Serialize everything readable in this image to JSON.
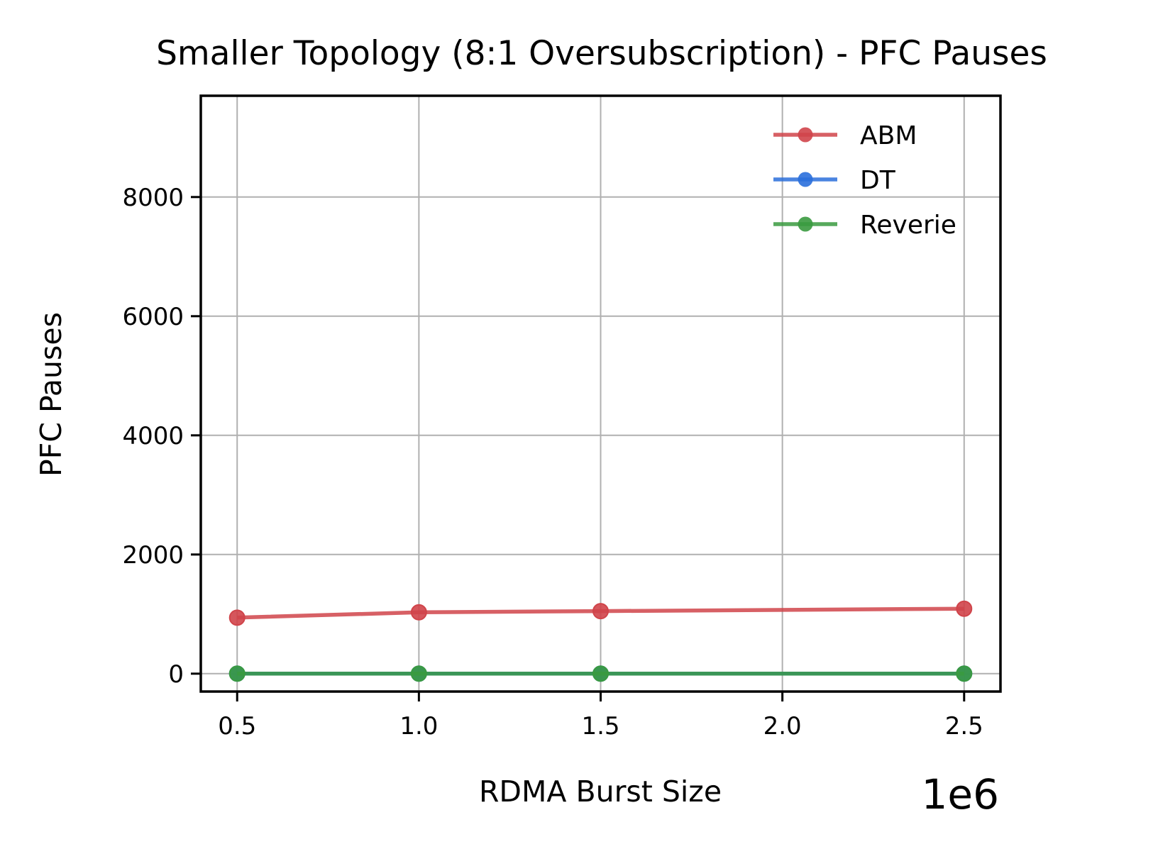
{
  "chart_data": {
    "type": "line",
    "title": "Smaller Topology (8:1 Oversubscription) - PFC Pauses",
    "xlabel": "RDMA Burst Size",
    "ylabel": "PFC Pauses",
    "x_offset_label": "1e6",
    "x": [
      0.5,
      1.0,
      1.5,
      2.5
    ],
    "xlim": [
      0.4,
      2.6
    ],
    "ylim": [
      -300,
      9700
    ],
    "xticks": [
      0.5,
      1.0,
      1.5,
      2.0,
      2.5
    ],
    "xtick_labels": [
      "0.5",
      "1.0",
      "1.5",
      "2.0",
      "2.5"
    ],
    "yticks": [
      0,
      2000,
      4000,
      6000,
      8000
    ],
    "ytick_labels": [
      "0",
      "2000",
      "4000",
      "6000",
      "8000"
    ],
    "grid": true,
    "legend_position": "top-right",
    "series": [
      {
        "name": "ABM",
        "color": "#d0444a",
        "values": [
          940,
          1030,
          1050,
          1090
        ]
      },
      {
        "name": "DT",
        "color": "#2a6fdb",
        "values": [
          0,
          0,
          0,
          0
        ]
      },
      {
        "name": "Reverie",
        "color": "#3a9a3f",
        "values": [
          0,
          0,
          0,
          0
        ]
      }
    ]
  }
}
